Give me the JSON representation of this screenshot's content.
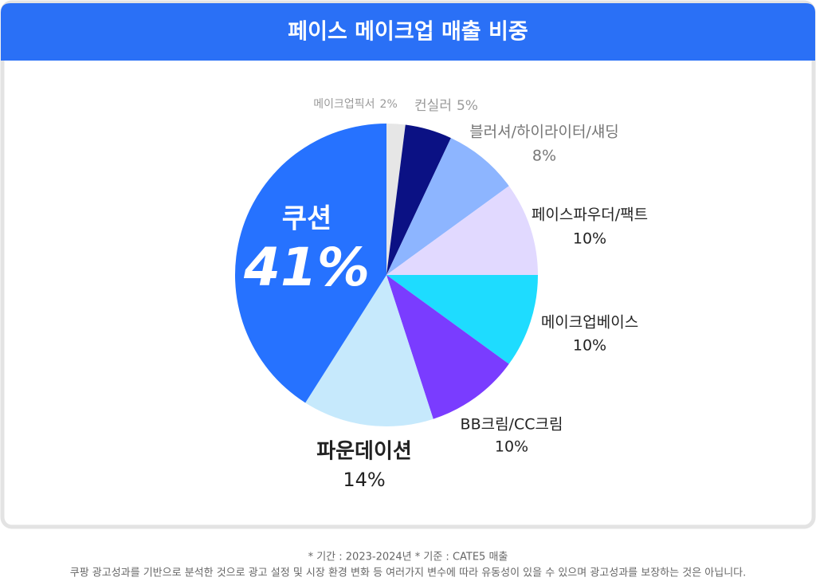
{
  "chart_data": {
    "type": "pie",
    "title": "페이스 메이크업 매출 비중",
    "categories": [
      "메이크업픽서",
      "컨실러",
      "블러셔/하이라이터/섀딩",
      "페이스파우더/팩트",
      "메이크업베이스",
      "BB크림/CC크림",
      "파운데이션",
      "쿠션"
    ],
    "values": [
      2,
      5,
      8,
      10,
      10,
      10,
      14,
      41
    ],
    "value_labels": [
      "2%",
      "5%",
      "8%",
      "10%",
      "10%",
      "10%",
      "14%",
      "41%"
    ],
    "colors": [
      "#e6e6e6",
      "#0b1184",
      "#8db5ff",
      "#e1d9ff",
      "#1edcff",
      "#7a3cff",
      "#c6e9fc",
      "#2672ff"
    ]
  },
  "footnotes": [
    "* 기간 : 2023-2024년  * 기준 : CATE5 매출",
    "쿠팡 광고성과를 기반으로 분석한 것으로 광고 설정 및 시장 환경 변화 등 여러가지  변수에 따라 유동성이 있을 수 있으며 광고성과를 보장하는 것은 아닙니다."
  ]
}
